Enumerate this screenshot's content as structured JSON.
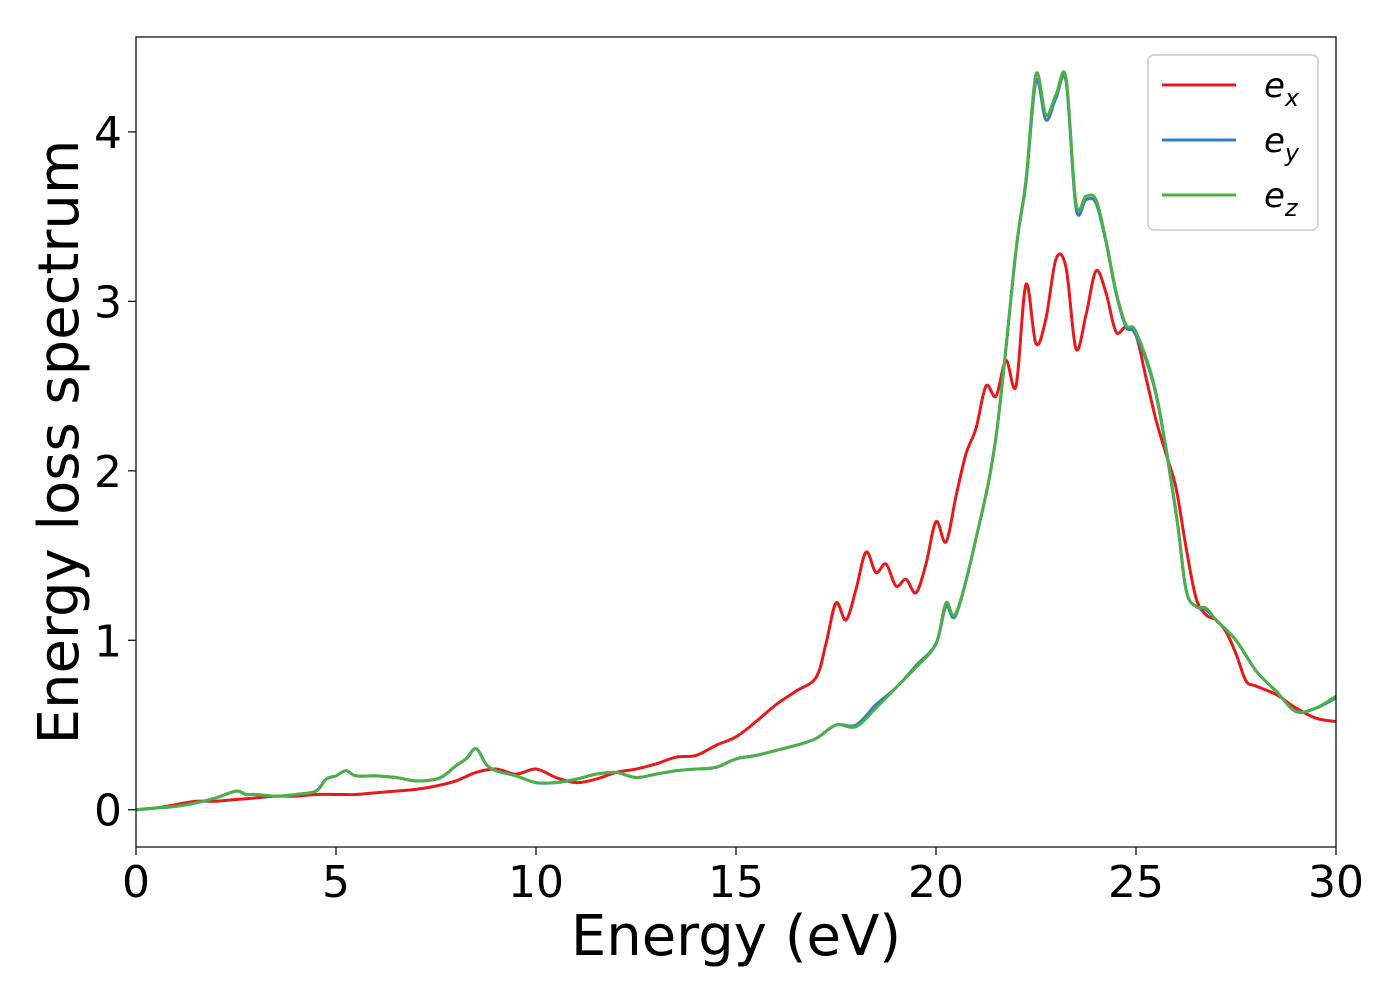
{
  "chart_data": {
    "type": "line",
    "title": "",
    "xlabel": "Energy (eV)",
    "ylabel": "Energy loss spectrum",
    "xlim": [
      0,
      30
    ],
    "ylim": [
      -0.22,
      4.56
    ],
    "xticks": [
      "0",
      "5",
      "10",
      "15",
      "20",
      "25",
      "30"
    ],
    "yticks": [
      "0",
      "1",
      "2",
      "3",
      "4"
    ],
    "grid": false,
    "legend_position": "top-right",
    "colors": {
      "e_x": "#e41a1c",
      "e_y": "#377eb8",
      "e_z": "#4daf4a"
    },
    "legend": [
      {
        "base": "e",
        "sub": "x"
      },
      {
        "base": "e",
        "sub": "y"
      },
      {
        "base": "e",
        "sub": "z"
      }
    ],
    "series": [
      {
        "name": "e_x",
        "x": [
          0,
          0.5,
          1,
          1.5,
          2,
          2.5,
          3,
          3.5,
          4,
          4.5,
          5,
          5.5,
          6,
          6.5,
          7,
          7.5,
          8,
          8.5,
          9,
          9.5,
          10,
          10.5,
          11,
          11.5,
          12,
          12.5,
          13,
          13.5,
          14,
          14.5,
          15,
          15.5,
          16,
          16.5,
          17,
          17.25,
          17.5,
          17.75,
          18,
          18.25,
          18.5,
          18.75,
          19,
          19.25,
          19.5,
          19.75,
          20,
          20.25,
          20.5,
          20.75,
          21,
          21.25,
          21.5,
          21.75,
          22,
          22.25,
          22.5,
          22.75,
          23,
          23.25,
          23.5,
          23.75,
          24,
          24.25,
          24.5,
          24.75,
          25,
          25.25,
          25.5,
          25.75,
          26,
          26.25,
          26.5,
          26.75,
          27,
          27.25,
          27.5,
          27.75,
          28,
          28.5,
          29,
          29.5,
          30
        ],
        "y": [
          0,
          0.01,
          0.03,
          0.05,
          0.05,
          0.06,
          0.07,
          0.08,
          0.08,
          0.09,
          0.09,
          0.09,
          0.1,
          0.11,
          0.12,
          0.14,
          0.17,
          0.22,
          0.24,
          0.21,
          0.24,
          0.19,
          0.16,
          0.18,
          0.22,
          0.24,
          0.27,
          0.31,
          0.32,
          0.38,
          0.43,
          0.52,
          0.62,
          0.7,
          0.78,
          0.98,
          1.22,
          1.12,
          1.3,
          1.52,
          1.4,
          1.45,
          1.32,
          1.36,
          1.28,
          1.45,
          1.7,
          1.58,
          1.85,
          2.1,
          2.25,
          2.5,
          2.44,
          2.65,
          2.5,
          3.1,
          2.75,
          2.9,
          3.25,
          3.2,
          2.72,
          2.92,
          3.18,
          3.05,
          2.82,
          2.85,
          2.8,
          2.55,
          2.3,
          2.1,
          1.9,
          1.55,
          1.25,
          1.15,
          1.12,
          1.05,
          0.92,
          0.76,
          0.73,
          0.68,
          0.6,
          0.54,
          0.52
        ]
      },
      {
        "name": "e_y",
        "x": [
          0,
          0.5,
          1,
          1.5,
          2,
          2.5,
          2.75,
          3,
          3.5,
          4,
          4.5,
          4.75,
          5,
          5.25,
          5.5,
          6,
          6.5,
          7,
          7.5,
          7.75,
          8,
          8.25,
          8.5,
          8.75,
          9,
          9.5,
          10,
          10.5,
          11,
          11.5,
          12,
          12.5,
          13,
          13.5,
          14,
          14.5,
          15,
          15.5,
          16,
          16.5,
          17,
          17.5,
          18,
          18.5,
          19,
          19.5,
          20,
          20.25,
          20.5,
          21,
          21.5,
          22,
          22.25,
          22.5,
          22.75,
          23,
          23.25,
          23.5,
          23.75,
          24,
          24.25,
          24.5,
          24.75,
          25,
          25.5,
          26,
          26.25,
          26.5,
          26.75,
          27,
          27.5,
          28,
          28.5,
          29,
          29.5,
          30
        ],
        "y": [
          0,
          0.01,
          0.02,
          0.04,
          0.07,
          0.11,
          0.09,
          0.09,
          0.08,
          0.09,
          0.11,
          0.18,
          0.2,
          0.23,
          0.2,
          0.2,
          0.19,
          0.17,
          0.18,
          0.21,
          0.26,
          0.3,
          0.36,
          0.27,
          0.23,
          0.2,
          0.16,
          0.16,
          0.18,
          0.21,
          0.22,
          0.19,
          0.21,
          0.23,
          0.24,
          0.25,
          0.3,
          0.32,
          0.35,
          0.38,
          0.42,
          0.5,
          0.5,
          0.62,
          0.72,
          0.85,
          0.98,
          1.2,
          1.15,
          1.6,
          2.2,
          3.3,
          3.7,
          4.3,
          4.07,
          4.2,
          4.3,
          3.55,
          3.6,
          3.58,
          3.35,
          3.05,
          2.85,
          2.8,
          2.45,
          1.75,
          1.3,
          1.2,
          1.18,
          1.12,
          1.0,
          0.82,
          0.7,
          0.58,
          0.6,
          0.66
        ]
      },
      {
        "name": "e_z",
        "x": [
          0,
          0.5,
          1,
          1.5,
          2,
          2.5,
          2.75,
          3,
          3.5,
          4,
          4.5,
          4.75,
          5,
          5.25,
          5.5,
          6,
          6.5,
          7,
          7.5,
          7.75,
          8,
          8.25,
          8.5,
          8.75,
          9,
          9.5,
          10,
          10.5,
          11,
          11.5,
          12,
          12.5,
          13,
          13.5,
          14,
          14.5,
          15,
          15.5,
          16,
          16.5,
          17,
          17.5,
          18,
          18.5,
          19,
          19.5,
          20,
          20.25,
          20.5,
          21,
          21.5,
          22,
          22.25,
          22.5,
          22.75,
          23,
          23.25,
          23.5,
          23.75,
          24,
          24.25,
          24.5,
          24.75,
          25,
          25.5,
          26,
          26.25,
          26.5,
          26.75,
          27,
          27.5,
          28,
          28.5,
          29,
          29.5,
          30
        ],
        "y": [
          0,
          0.01,
          0.02,
          0.04,
          0.07,
          0.11,
          0.09,
          0.09,
          0.08,
          0.09,
          0.11,
          0.18,
          0.2,
          0.23,
          0.2,
          0.2,
          0.19,
          0.17,
          0.18,
          0.21,
          0.26,
          0.3,
          0.36,
          0.27,
          0.23,
          0.2,
          0.16,
          0.16,
          0.18,
          0.21,
          0.22,
          0.19,
          0.21,
          0.23,
          0.24,
          0.25,
          0.3,
          0.32,
          0.35,
          0.38,
          0.42,
          0.5,
          0.49,
          0.6,
          0.72,
          0.84,
          0.98,
          1.22,
          1.16,
          1.6,
          2.2,
          3.3,
          3.72,
          4.34,
          4.1,
          4.22,
          4.32,
          3.58,
          3.62,
          3.6,
          3.36,
          3.06,
          2.86,
          2.82,
          2.46,
          1.76,
          1.3,
          1.2,
          1.19,
          1.12,
          1.0,
          0.82,
          0.7,
          0.58,
          0.6,
          0.67
        ]
      }
    ]
  }
}
